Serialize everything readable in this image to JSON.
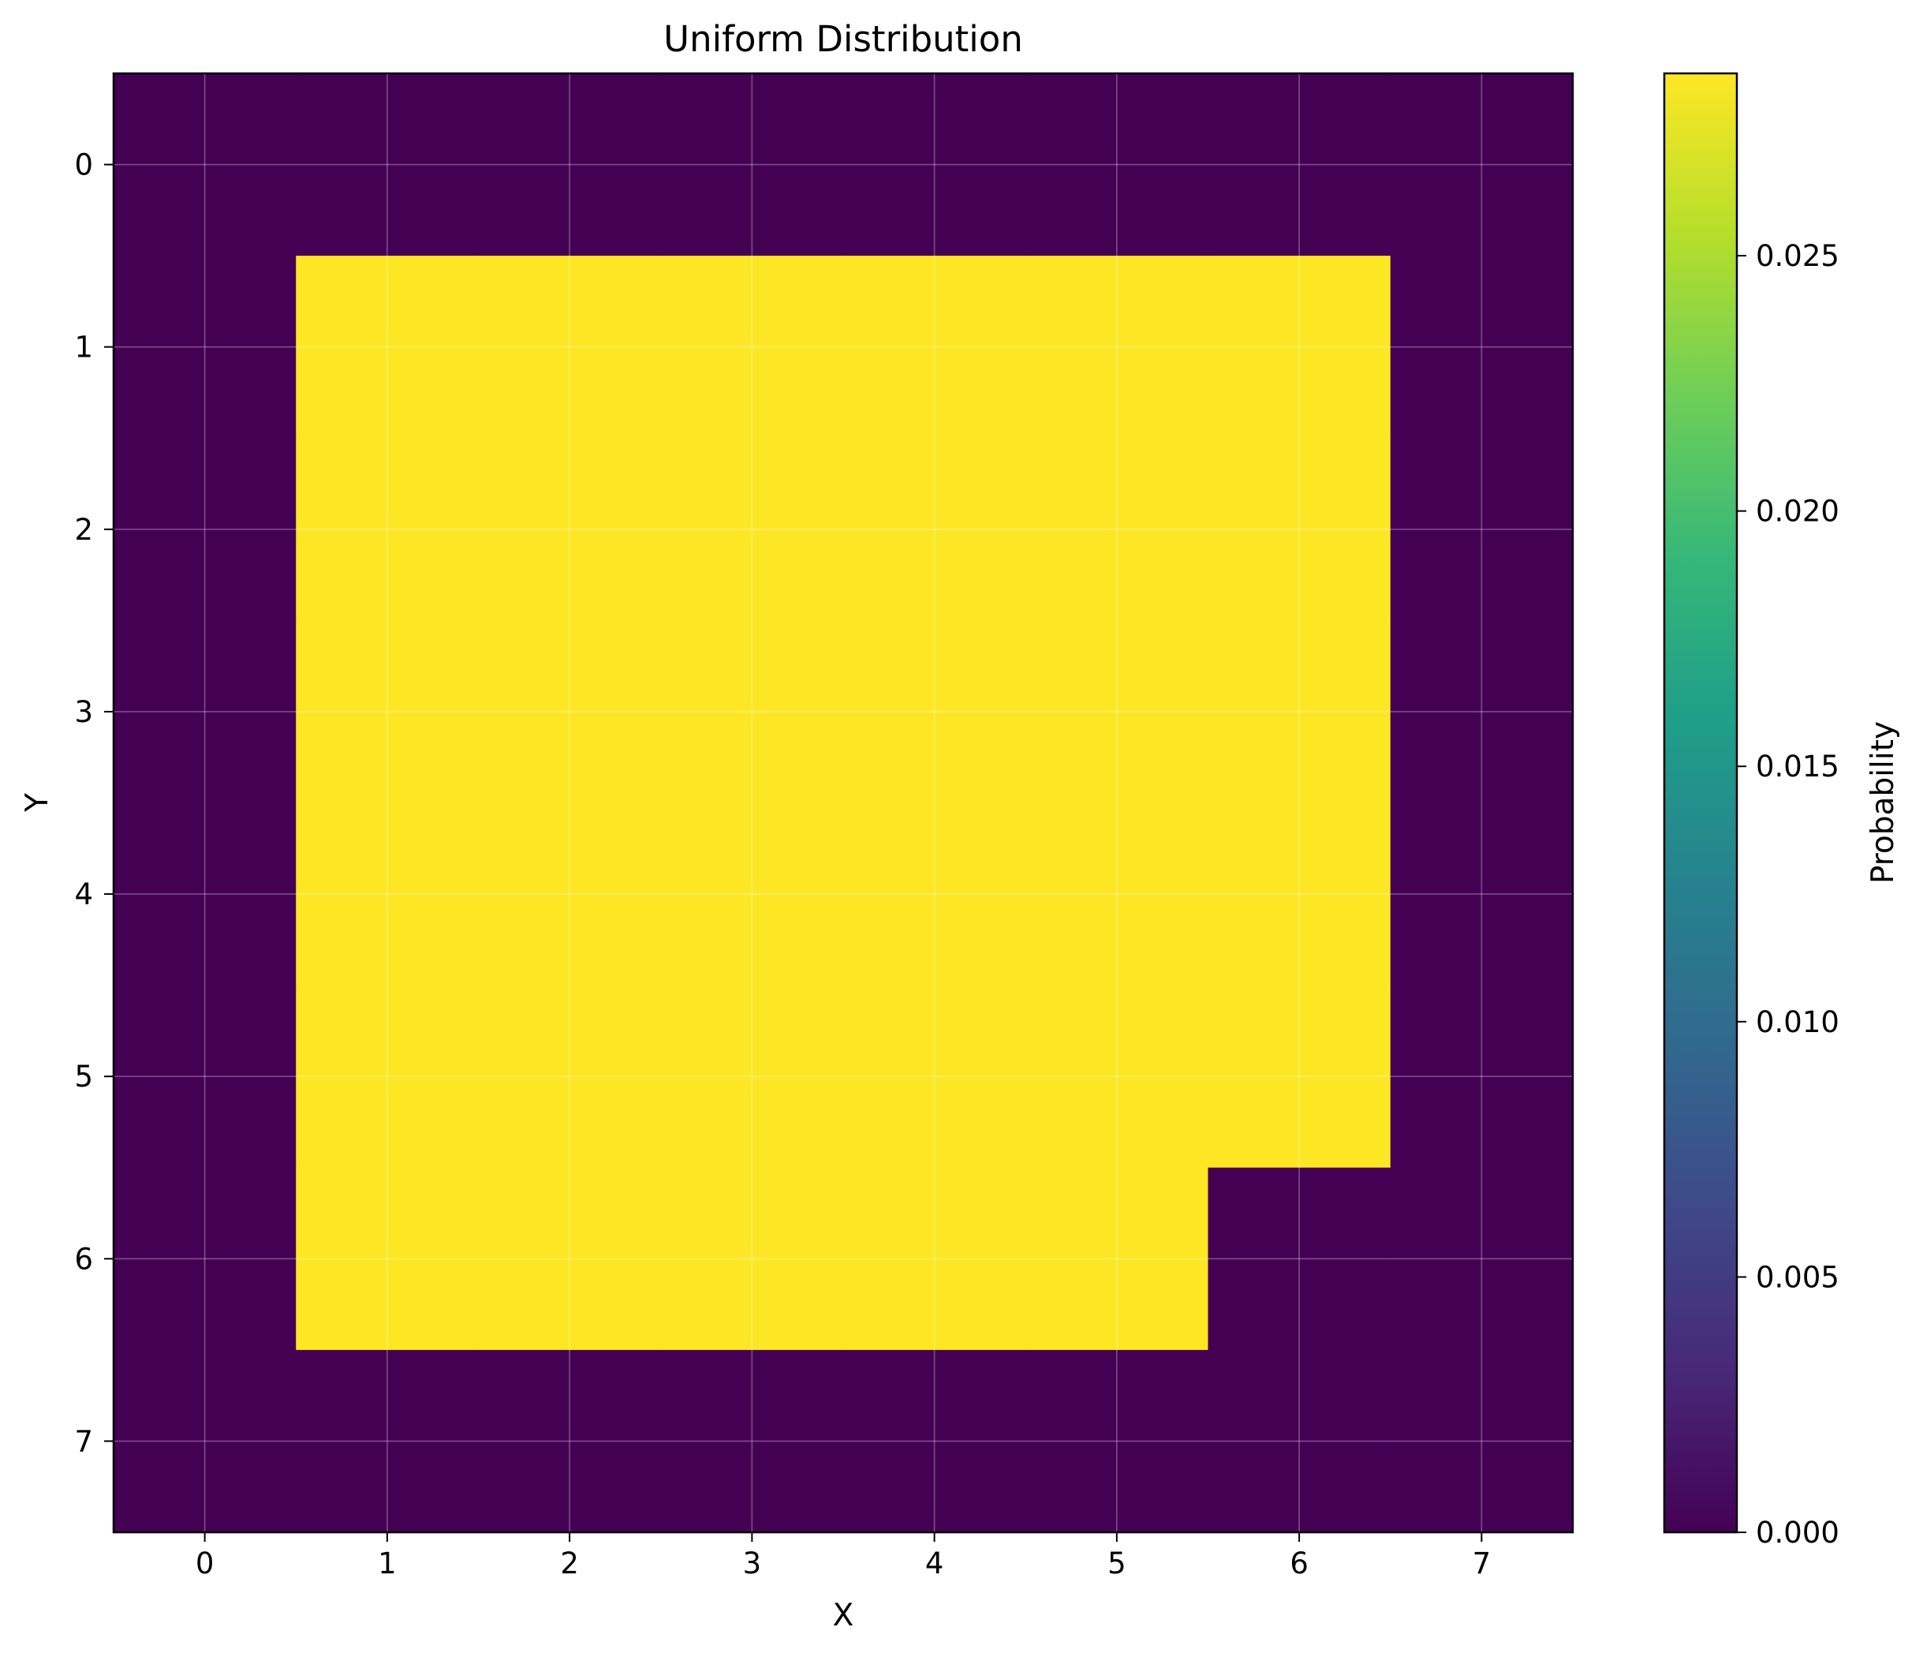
{
  "chart_data": {
    "type": "heatmap",
    "title": "Uniform Distribution",
    "xlabel": "X",
    "ylabel": "Y",
    "x_ticks": [
      "0",
      "1",
      "2",
      "3",
      "4",
      "5",
      "6",
      "7"
    ],
    "y_ticks": [
      "0",
      "1",
      "2",
      "3",
      "4",
      "5",
      "6",
      "7"
    ],
    "xlim": [
      -0.5,
      7.5
    ],
    "ylim": [
      7.5,
      -0.5
    ],
    "grid": true,
    "colormap": "viridis",
    "colorbar": {
      "label": "Probability",
      "range": [
        0.0,
        0.02857
      ],
      "ticks": [
        0.0,
        0.005,
        0.01,
        0.015,
        0.02,
        0.025
      ],
      "tick_labels": [
        "0.000",
        "0.005",
        "0.010",
        "0.015",
        "0.020",
        "0.025"
      ],
      "position": "right"
    },
    "rows": [
      [
        0,
        0,
        0,
        0,
        0,
        0,
        0,
        0
      ],
      [
        0,
        0.02857,
        0.02857,
        0.02857,
        0.02857,
        0.02857,
        0.02857,
        0
      ],
      [
        0,
        0.02857,
        0.02857,
        0.02857,
        0.02857,
        0.02857,
        0.02857,
        0
      ],
      [
        0,
        0.02857,
        0.02857,
        0.02857,
        0.02857,
        0.02857,
        0.02857,
        0
      ],
      [
        0,
        0.02857,
        0.02857,
        0.02857,
        0.02857,
        0.02857,
        0.02857,
        0
      ],
      [
        0,
        0.02857,
        0.02857,
        0.02857,
        0.02857,
        0.02857,
        0.02857,
        0
      ],
      [
        0,
        0.02857,
        0.02857,
        0.02857,
        0.02857,
        0.02857,
        0,
        0
      ],
      [
        0,
        0,
        0,
        0,
        0,
        0,
        0,
        0
      ]
    ]
  },
  "colors": {
    "low": "#440154",
    "high": "#fde725",
    "viridis_stops": [
      "#440154",
      "#482878",
      "#3e4989",
      "#31688e",
      "#26828e",
      "#1f9e89",
      "#35b779",
      "#6ece58",
      "#b5de2b",
      "#fde725"
    ]
  }
}
